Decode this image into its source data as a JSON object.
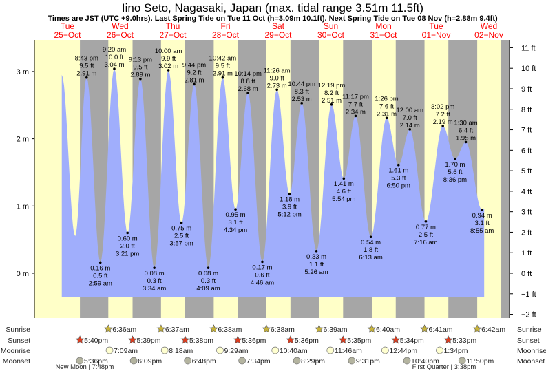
{
  "chart_data": {
    "type": "area",
    "title": "Iino Seto, Nagasaki, Japan (max. tidal range 3.51m 11.5ft)",
    "subtitle": "Times are JST (UTC +9.0hrs). Last Spring Tide on Tue 11 Oct (h=3.09m 10.1ft). Next Spring Tide on Tue 08 Nov (h=2.88m 9.4ft)",
    "days": [
      {
        "name": "Tue",
        "date": "25−Oct"
      },
      {
        "name": "Wed",
        "date": "26−Oct"
      },
      {
        "name": "Thu",
        "date": "27−Oct"
      },
      {
        "name": "Fri",
        "date": "28−Oct"
      },
      {
        "name": "Sat",
        "date": "29−Oct"
      },
      {
        "name": "Sun",
        "date": "30−Oct"
      },
      {
        "name": "Mon",
        "date": "31−Oct"
      },
      {
        "name": "Tue",
        "date": "01−Nov"
      },
      {
        "name": "Wed",
        "date": "02−Nov"
      }
    ],
    "y_left_ticks": [
      {
        "v": 3,
        "label": "3 m"
      },
      {
        "v": 2,
        "label": "2 m"
      },
      {
        "v": 1,
        "label": "1 m"
      },
      {
        "v": 0,
        "label": "0 m"
      }
    ],
    "y_right_ticks": [
      {
        "ft": 11,
        "label": "11 ft"
      },
      {
        "ft": 10,
        "label": "10 ft"
      },
      {
        "ft": 9,
        "label": "9 ft"
      },
      {
        "ft": 8,
        "label": "8 ft"
      },
      {
        "ft": 7,
        "label": "7 ft"
      },
      {
        "ft": 6,
        "label": "6 ft"
      },
      {
        "ft": 5,
        "label": "5 ft"
      },
      {
        "ft": 4,
        "label": "4 ft"
      },
      {
        "ft": 3,
        "label": "3 ft"
      },
      {
        "ft": 2,
        "label": "2 ft"
      },
      {
        "ft": 1,
        "label": "1 ft"
      },
      {
        "ft": 0,
        "label": "0 ft"
      },
      {
        "ft": -1,
        "label": "−1 ft"
      },
      {
        "ft": -2,
        "label": "−2 ft"
      }
    ],
    "ylim_m": [
      -0.66,
      3.47
    ],
    "unlabeled_points": [
      {
        "h": 9.4,
        "m": 2.95
      },
      {
        "h": 15.5,
        "m": 0.55
      }
    ],
    "extrema": [
      {
        "h": 20.72,
        "m": 2.91,
        "type": "high",
        "time": "8:43 pm",
        "m_label": "2.91 m",
        "ft_label": "9.5 ft"
      },
      {
        "h": 26.98,
        "m": 0.16,
        "type": "low",
        "time": "2:59 am",
        "m_label": "0.16 m",
        "ft_label": "0.5 ft"
      },
      {
        "h": 33.33,
        "m": 3.04,
        "type": "high",
        "time": "9:20 am",
        "m_label": "3.04 m",
        "ft_label": "10.0 ft"
      },
      {
        "h": 39.35,
        "m": 0.6,
        "type": "low",
        "time": "3:21 pm",
        "m_label": "0.60 m",
        "ft_label": "2.0 ft"
      },
      {
        "h": 45.22,
        "m": 2.89,
        "type": "high",
        "time": "9:13 pm",
        "m_label": "2.89 m",
        "ft_label": "9.5 ft"
      },
      {
        "h": 51.57,
        "m": 0.08,
        "type": "low",
        "time": "3:34 am",
        "m_label": "0.08 m",
        "ft_label": "0.3 ft"
      },
      {
        "h": 58.0,
        "m": 3.02,
        "type": "high",
        "time": "10:00 am",
        "m_label": "3.02 m",
        "ft_label": "9.9 ft"
      },
      {
        "h": 63.95,
        "m": 0.75,
        "type": "low",
        "time": "3:57 pm",
        "m_label": "0.75 m",
        "ft_label": "2.5 ft"
      },
      {
        "h": 69.73,
        "m": 2.81,
        "type": "high",
        "time": "9:44 pm",
        "m_label": "2.81 m",
        "ft_label": "9.2 ft"
      },
      {
        "h": 76.15,
        "m": 0.08,
        "type": "low",
        "time": "4:09 am",
        "m_label": "0.08 m",
        "ft_label": "0.3 ft"
      },
      {
        "h": 82.7,
        "m": 2.91,
        "type": "high",
        "time": "10:42 am",
        "m_label": "2.91 m",
        "ft_label": "9.5 ft"
      },
      {
        "h": 88.57,
        "m": 0.95,
        "type": "low",
        "time": "4:34 pm",
        "m_label": "0.95 m",
        "ft_label": "3.1 ft"
      },
      {
        "h": 94.23,
        "m": 2.68,
        "type": "high",
        "time": "10:14 pm",
        "m_label": "2.68 m",
        "ft_label": "8.8 ft"
      },
      {
        "h": 100.77,
        "m": 0.17,
        "type": "low",
        "time": "4:46 am",
        "m_label": "0.17 m",
        "ft_label": "0.6 ft"
      },
      {
        "h": 107.43,
        "m": 2.73,
        "type": "high",
        "time": "11:26 am",
        "m_label": "2.73 m",
        "ft_label": "9.0 ft"
      },
      {
        "h": 113.2,
        "m": 1.18,
        "type": "low",
        "time": "5:12 pm",
        "m_label": "1.18 m",
        "ft_label": "3.9 ft"
      },
      {
        "h": 118.73,
        "m": 2.53,
        "type": "high",
        "time": "10:44 pm",
        "m_label": "2.53 m",
        "ft_label": "8.3 ft"
      },
      {
        "h": 125.43,
        "m": 0.33,
        "type": "low",
        "time": "5:26 am",
        "m_label": "0.33 m",
        "ft_label": "1.1 ft"
      },
      {
        "h": 132.32,
        "m": 2.51,
        "type": "high",
        "time": "12:19 pm",
        "m_label": "2.51 m",
        "ft_label": "8.2 ft"
      },
      {
        "h": 137.9,
        "m": 1.41,
        "type": "low",
        "time": "5:54 pm",
        "m_label": "1.41 m",
        "ft_label": "4.6 ft"
      },
      {
        "h": 143.28,
        "m": 2.34,
        "type": "high",
        "time": "11:17 pm",
        "m_label": "2.34 m",
        "ft_label": "7.7 ft"
      },
      {
        "h": 150.22,
        "m": 0.54,
        "type": "low",
        "time": "6:13 am",
        "m_label": "0.54 m",
        "ft_label": "1.8 ft"
      },
      {
        "h": 157.43,
        "m": 2.31,
        "type": "high",
        "time": "1:26 pm",
        "m_label": "2.31 m",
        "ft_label": "7.6 ft"
      },
      {
        "h": 162.83,
        "m": 1.61,
        "type": "low",
        "time": "6:50 pm",
        "m_label": "1.61 m",
        "ft_label": "5.3 ft"
      },
      {
        "h": 168.0,
        "m": 2.14,
        "type": "high",
        "time": "12:00 am",
        "m_label": "2.14 m",
        "ft_label": "7.0 ft"
      },
      {
        "h": 175.27,
        "m": 0.77,
        "type": "low",
        "time": "7:16 am",
        "m_label": "0.77 m",
        "ft_label": "2.5 ft"
      },
      {
        "h": 183.03,
        "m": 2.19,
        "type": "high",
        "time": "3:02 pm",
        "m_label": "2.19 m",
        "ft_label": "7.2 ft"
      },
      {
        "h": 188.6,
        "m": 1.7,
        "type": "low",
        "time": "8:36 pm",
        "m_label": "1.70 m",
        "ft_label": "5.6 ft"
      },
      {
        "h": 193.5,
        "m": 1.95,
        "type": "high",
        "time": "1:30 am",
        "m_label": "1.95 m",
        "ft_label": "6.4 ft"
      },
      {
        "h": 200.92,
        "m": 0.94,
        "type": "low",
        "time": "8:55 am",
        "m_label": "0.94 m",
        "ft_label": "3.1 ft"
      }
    ],
    "colors": {
      "tide": "#a0aefc",
      "day": "#ffffc8",
      "night": "#a6a6a6",
      "day_label": "#ff0000",
      "sunrise": "#c8b43c",
      "sunset": "#e03c1e",
      "moonrise": "#ffffd0",
      "moonset": "#b4b4a0"
    }
  },
  "rows": {
    "labels": {
      "sunrise": "Sunrise",
      "sunset": "Sunset",
      "moonrise": "Moonrise",
      "moonset": "Moonset"
    },
    "sunrise": [
      {
        "h": 30.6,
        "t": "6:36am"
      },
      {
        "h": 54.62,
        "t": "6:37am"
      },
      {
        "h": 78.63,
        "t": "6:38am"
      },
      {
        "h": 102.63,
        "t": "6:38am"
      },
      {
        "h": 126.65,
        "t": "6:39am"
      },
      {
        "h": 150.67,
        "t": "6:40am"
      },
      {
        "h": 174.68,
        "t": "6:41am"
      },
      {
        "h": 198.7,
        "t": "6:42am"
      }
    ],
    "sunset": [
      {
        "h": 17.67,
        "t": "5:40pm"
      },
      {
        "h": 41.65,
        "t": "5:39pm"
      },
      {
        "h": 65.63,
        "t": "5:38pm"
      },
      {
        "h": 89.6,
        "t": "5:36pm"
      },
      {
        "h": 113.6,
        "t": "5:36pm"
      },
      {
        "h": 137.58,
        "t": "5:35pm"
      },
      {
        "h": 161.57,
        "t": "5:34pm"
      },
      {
        "h": 185.55,
        "t": "5:33pm"
      }
    ],
    "moonrise": [
      {
        "h": 31.15,
        "t": "7:09am"
      },
      {
        "h": 56.3,
        "t": "8:18am"
      },
      {
        "h": 81.48,
        "t": "9:29am"
      },
      {
        "h": 106.67,
        "t": "10:40am"
      },
      {
        "h": 131.77,
        "t": "11:46am"
      },
      {
        "h": 156.73,
        "t": "12:44pm"
      },
      {
        "h": 181.57,
        "t": "1:34pm"
      }
    ],
    "moonset": [
      {
        "h": 17.6,
        "t": "5:36pm"
      },
      {
        "h": 42.15,
        "t": "6:09pm"
      },
      {
        "h": 66.8,
        "t": "6:48pm"
      },
      {
        "h": 91.57,
        "t": "7:34pm"
      },
      {
        "h": 116.48,
        "t": "8:29pm"
      },
      {
        "h": 141.52,
        "t": "9:31pm"
      },
      {
        "h": 166.67,
        "t": "10:40pm"
      },
      {
        "h": 191.83,
        "t": "11:50pm"
      }
    ],
    "phases": [
      {
        "h": 19.8,
        "t": "New Moon | 7:48pm"
      },
      {
        "h": 183.6,
        "t": "First Quarter | 3:38pm"
      }
    ]
  }
}
